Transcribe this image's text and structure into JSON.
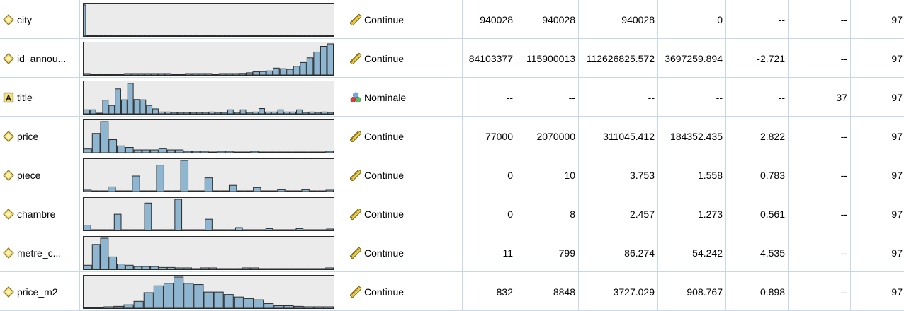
{
  "colors": {
    "bar_fill": "#8fb6d1",
    "bar_stroke": "#2b2b2b",
    "hist_bg": "#ebebeb",
    "grid_line": "#c9d8e8"
  },
  "rows": [
    {
      "name": "city",
      "name_icon": "continuous-field-icon",
      "hist": [
        1,
        0,
        0,
        0,
        0,
        0,
        0,
        0,
        0,
        0,
        0,
        0,
        0,
        0,
        0,
        0,
        0,
        0,
        0,
        0,
        0,
        0,
        0,
        0,
        0,
        0,
        0,
        0,
        0,
        0,
        0,
        0,
        0,
        0,
        0,
        0,
        0,
        0,
        0,
        0,
        0,
        0,
        0,
        0,
        0,
        0,
        0,
        0,
        0,
        0,
        0,
        0,
        0,
        0,
        0,
        0,
        0,
        0,
        0,
        0,
        0,
        0,
        0,
        0,
        0,
        0,
        0,
        0,
        0,
        0,
        0,
        0,
        0,
        0,
        0,
        0,
        0,
        0,
        0,
        0,
        0,
        0,
        0,
        0,
        0,
        0,
        0,
        0,
        0,
        0,
        0,
        0,
        0,
        0,
        0,
        0,
        0,
        0,
        0,
        0
      ],
      "type": "Continue",
      "type_icon": "ruler-icon",
      "min": "940028",
      "max": "940028",
      "mean": "940028",
      "std": "0",
      "skew": "--",
      "unique": "--",
      "valid": "97"
    },
    {
      "name": "id_annou...",
      "name_icon": "continuous-field-icon",
      "hist": [
        0.02,
        0,
        0,
        0,
        0,
        0,
        0.01,
        0.02,
        0.02,
        0.02,
        0.02,
        0.02,
        0.02,
        0,
        0,
        0.02,
        0.02,
        0.02,
        0.02,
        0,
        0.02,
        0.04,
        0.04,
        0.05,
        0.07,
        0.1,
        0.11,
        0.13,
        0.22,
        0.2,
        0.18,
        0.28,
        0.4,
        0.55,
        0.74,
        0.92,
        1
      ],
      "type": "Continue",
      "type_icon": "ruler-icon",
      "min": "84103377",
      "max": "115900013",
      "mean": "112626825.572",
      "std": "3697259.894",
      "skew": "-2.721",
      "unique": "--",
      "valid": "97"
    },
    {
      "name": "title",
      "name_icon": "nominal-text-icon",
      "hist": [
        0.13,
        0.13,
        0,
        0.44,
        0.27,
        0.8,
        0.45,
        0.98,
        0.46,
        0.45,
        0.27,
        0.16,
        0.06,
        0.06,
        0.04,
        0.04,
        0.04,
        0.04,
        0.04,
        0.04,
        0.06,
        0.04,
        0.04,
        0.13,
        0.04,
        0.13,
        0.04,
        0.06,
        0.17,
        0.06,
        0.06,
        0.13,
        0.06,
        0.06,
        0.13,
        0.04,
        0.06,
        0.04,
        0.06,
        0.04
      ],
      "type": "Nominale",
      "type_icon": "nominal-balls-icon",
      "min": "--",
      "max": "--",
      "mean": "--",
      "std": "--",
      "skew": "--",
      "unique": "37",
      "valid": "97"
    },
    {
      "name": "price",
      "name_icon": "continuous-field-icon",
      "hist": [
        0.12,
        0.62,
        1,
        0.42,
        0.22,
        0.17,
        0.09,
        0.09,
        0.09,
        0.13,
        0.09,
        0.09,
        0.04,
        0.04,
        0.04,
        0,
        0.04,
        0.04,
        0,
        0,
        0.04,
        0,
        0,
        0,
        0,
        0,
        0,
        0,
        0,
        0.04
      ],
      "type": "Continue",
      "type_icon": "ruler-icon",
      "min": "77000",
      "max": "2070000",
      "mean": "311045.412",
      "std": "184352.435",
      "skew": "2.822",
      "unique": "--",
      "valid": "97"
    },
    {
      "name": "piece",
      "name_icon": "continuous-field-icon",
      "hist": [
        0.04,
        0,
        0,
        0.15,
        0,
        0,
        0.5,
        0,
        0,
        0.85,
        0,
        0,
        1,
        0,
        0,
        0.44,
        0,
        0,
        0.2,
        0,
        0,
        0.13,
        0,
        0,
        0.06,
        0,
        0,
        0.06,
        0,
        0,
        0.04
      ],
      "type": "Continue",
      "type_icon": "ruler-icon",
      "min": "0",
      "max": "10",
      "mean": "3.753",
      "std": "1.558",
      "skew": "0.783",
      "unique": "--",
      "valid": "97"
    },
    {
      "name": "chambre",
      "name_icon": "continuous-field-icon",
      "hist": [
        0.17,
        0,
        0,
        0,
        0.52,
        0,
        0,
        0,
        0.88,
        0,
        0,
        0,
        1,
        0,
        0,
        0,
        0.36,
        0,
        0,
        0,
        0.09,
        0,
        0,
        0,
        0.06,
        0,
        0,
        0,
        0.06,
        0,
        0,
        0,
        0.04
      ],
      "type": "Continue",
      "type_icon": "ruler-icon",
      "min": "0",
      "max": "8",
      "mean": "2.457",
      "std": "1.273",
      "skew": "0.561",
      "unique": "--",
      "valid": "97"
    },
    {
      "name": "metre_c...",
      "name_icon": "continuous-field-icon",
      "hist": [
        0.13,
        0.8,
        1,
        0.4,
        0.17,
        0.13,
        0.09,
        0.09,
        0.09,
        0.06,
        0.06,
        0.04,
        0.04,
        0,
        0.04,
        0.04,
        0,
        0,
        0,
        0.04,
        0.04,
        0,
        0,
        0,
        0,
        0,
        0,
        0,
        0,
        0.04
      ],
      "type": "Continue",
      "type_icon": "ruler-icon",
      "min": "11",
      "max": "799",
      "mean": "86.274",
      "std": "54.242",
      "skew": "4.535",
      "unique": "--",
      "valid": "97"
    },
    {
      "name": "price_m2",
      "name_icon": "continuous-field-icon",
      "hist": [
        0,
        0,
        0.04,
        0.06,
        0.11,
        0.22,
        0.5,
        0.72,
        0.8,
        1,
        0.8,
        0.76,
        0.52,
        0.52,
        0.44,
        0.36,
        0.31,
        0.27,
        0.15,
        0.08,
        0.08,
        0.06,
        0.04,
        0.04,
        0.04
      ],
      "type": "Continue",
      "type_icon": "ruler-icon",
      "min": "832",
      "max": "8848",
      "mean": "3727.029",
      "std": "908.767",
      "skew": "0.898",
      "unique": "--",
      "valid": "97"
    }
  ]
}
